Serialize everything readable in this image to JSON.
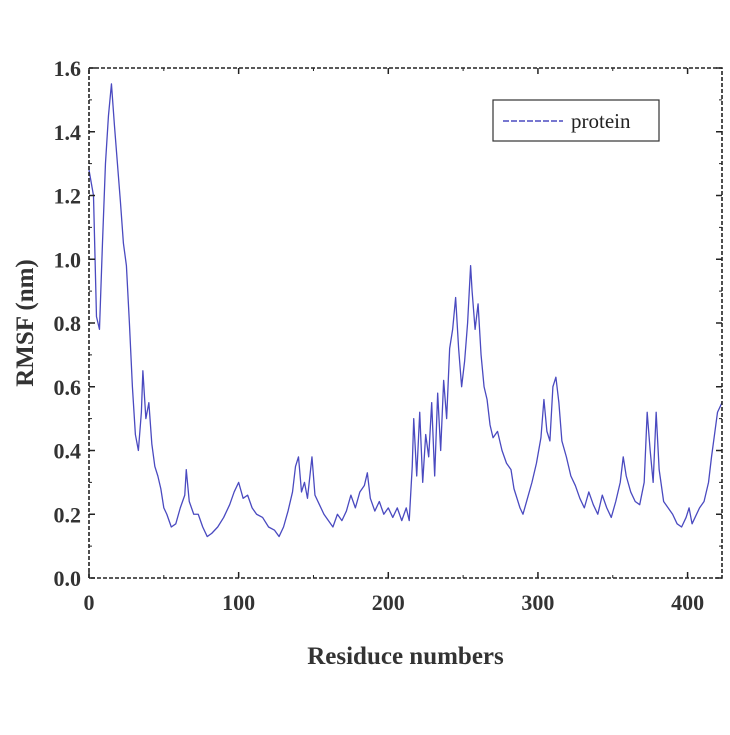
{
  "chart_data": {
    "type": "line",
    "title": "",
    "xlabel": "Residuce numbers",
    "ylabel": "RMSF (nm)",
    "xlim": [
      0,
      423
    ],
    "ylim": [
      0,
      1.6
    ],
    "x_ticks": [
      0,
      100,
      200,
      300,
      400
    ],
    "y_ticks": [
      0.0,
      0.2,
      0.4,
      0.6,
      0.8,
      1.0,
      1.2,
      1.4,
      1.6
    ],
    "x_tick_labels": [
      "0",
      "100",
      "200",
      "300",
      "400"
    ],
    "y_tick_labels": [
      "0.0",
      "0.2",
      "0.4",
      "0.6",
      "0.8",
      "1.0",
      "1.2",
      "1.4",
      "1.6"
    ],
    "legend": {
      "position": "top-right",
      "entries": [
        "protein"
      ]
    },
    "grid": false,
    "series": [
      {
        "name": "protein",
        "color": "#4a4ac0",
        "points": [
          [
            0,
            1.28
          ],
          [
            3,
            1.2
          ],
          [
            5,
            0.82
          ],
          [
            7,
            0.78
          ],
          [
            9,
            1.05
          ],
          [
            11,
            1.3
          ],
          [
            13,
            1.45
          ],
          [
            15,
            1.55
          ],
          [
            17,
            1.42
          ],
          [
            19,
            1.3
          ],
          [
            21,
            1.18
          ],
          [
            23,
            1.05
          ],
          [
            25,
            0.98
          ],
          [
            27,
            0.8
          ],
          [
            29,
            0.6
          ],
          [
            31,
            0.45
          ],
          [
            33,
            0.4
          ],
          [
            35,
            0.52
          ],
          [
            36,
            0.65
          ],
          [
            38,
            0.5
          ],
          [
            40,
            0.55
          ],
          [
            42,
            0.42
          ],
          [
            44,
            0.35
          ],
          [
            46,
            0.32
          ],
          [
            48,
            0.28
          ],
          [
            50,
            0.22
          ],
          [
            52,
            0.2
          ],
          [
            55,
            0.16
          ],
          [
            58,
            0.17
          ],
          [
            61,
            0.22
          ],
          [
            64,
            0.26
          ],
          [
            65,
            0.34
          ],
          [
            67,
            0.24
          ],
          [
            70,
            0.2
          ],
          [
            73,
            0.2
          ],
          [
            76,
            0.16
          ],
          [
            79,
            0.13
          ],
          [
            82,
            0.14
          ],
          [
            86,
            0.16
          ],
          [
            90,
            0.19
          ],
          [
            94,
            0.23
          ],
          [
            97,
            0.27
          ],
          [
            100,
            0.3
          ],
          [
            103,
            0.25
          ],
          [
            106,
            0.26
          ],
          [
            109,
            0.22
          ],
          [
            112,
            0.2
          ],
          [
            116,
            0.19
          ],
          [
            120,
            0.16
          ],
          [
            124,
            0.15
          ],
          [
            127,
            0.13
          ],
          [
            130,
            0.16
          ],
          [
            133,
            0.21
          ],
          [
            136,
            0.27
          ],
          [
            138,
            0.35
          ],
          [
            140,
            0.38
          ],
          [
            142,
            0.27
          ],
          [
            144,
            0.3
          ],
          [
            146,
            0.25
          ],
          [
            149,
            0.38
          ],
          [
            151,
            0.26
          ],
          [
            154,
            0.23
          ],
          [
            157,
            0.2
          ],
          [
            160,
            0.18
          ],
          [
            163,
            0.16
          ],
          [
            166,
            0.2
          ],
          [
            169,
            0.18
          ],
          [
            172,
            0.21
          ],
          [
            175,
            0.26
          ],
          [
            178,
            0.22
          ],
          [
            181,
            0.27
          ],
          [
            184,
            0.29
          ],
          [
            186,
            0.33
          ],
          [
            188,
            0.25
          ],
          [
            191,
            0.21
          ],
          [
            194,
            0.24
          ],
          [
            197,
            0.2
          ],
          [
            200,
            0.22
          ],
          [
            203,
            0.19
          ],
          [
            206,
            0.22
          ],
          [
            209,
            0.18
          ],
          [
            212,
            0.22
          ],
          [
            214,
            0.18
          ],
          [
            216,
            0.35
          ],
          [
            217,
            0.5
          ],
          [
            219,
            0.32
          ],
          [
            221,
            0.52
          ],
          [
            223,
            0.3
          ],
          [
            225,
            0.45
          ],
          [
            227,
            0.38
          ],
          [
            229,
            0.55
          ],
          [
            231,
            0.32
          ],
          [
            233,
            0.58
          ],
          [
            235,
            0.4
          ],
          [
            237,
            0.62
          ],
          [
            239,
            0.5
          ],
          [
            241,
            0.72
          ],
          [
            243,
            0.78
          ],
          [
            245,
            0.88
          ],
          [
            247,
            0.72
          ],
          [
            249,
            0.6
          ],
          [
            251,
            0.68
          ],
          [
            253,
            0.8
          ],
          [
            255,
            0.98
          ],
          [
            256,
            0.9
          ],
          [
            258,
            0.78
          ],
          [
            260,
            0.86
          ],
          [
            262,
            0.7
          ],
          [
            264,
            0.6
          ],
          [
            266,
            0.56
          ],
          [
            268,
            0.48
          ],
          [
            270,
            0.44
          ],
          [
            273,
            0.46
          ],
          [
            276,
            0.4
          ],
          [
            279,
            0.36
          ],
          [
            282,
            0.34
          ],
          [
            284,
            0.28
          ],
          [
            286,
            0.25
          ],
          [
            288,
            0.22
          ],
          [
            290,
            0.2
          ],
          [
            293,
            0.25
          ],
          [
            296,
            0.3
          ],
          [
            299,
            0.36
          ],
          [
            302,
            0.44
          ],
          [
            304,
            0.56
          ],
          [
            306,
            0.46
          ],
          [
            308,
            0.43
          ],
          [
            310,
            0.6
          ],
          [
            312,
            0.63
          ],
          [
            314,
            0.55
          ],
          [
            316,
            0.43
          ],
          [
            319,
            0.38
          ],
          [
            322,
            0.32
          ],
          [
            325,
            0.29
          ],
          [
            328,
            0.25
          ],
          [
            331,
            0.22
          ],
          [
            334,
            0.27
          ],
          [
            337,
            0.23
          ],
          [
            340,
            0.2
          ],
          [
            343,
            0.26
          ],
          [
            346,
            0.22
          ],
          [
            349,
            0.19
          ],
          [
            352,
            0.24
          ],
          [
            355,
            0.3
          ],
          [
            357,
            0.38
          ],
          [
            359,
            0.32
          ],
          [
            362,
            0.27
          ],
          [
            365,
            0.24
          ],
          [
            368,
            0.23
          ],
          [
            371,
            0.3
          ],
          [
            373,
            0.52
          ],
          [
            375,
            0.4
          ],
          [
            377,
            0.3
          ],
          [
            379,
            0.52
          ],
          [
            381,
            0.34
          ],
          [
            384,
            0.24
          ],
          [
            387,
            0.22
          ],
          [
            390,
            0.2
          ],
          [
            393,
            0.17
          ],
          [
            396,
            0.16
          ],
          [
            399,
            0.19
          ],
          [
            401,
            0.22
          ],
          [
            403,
            0.17
          ],
          [
            405,
            0.19
          ],
          [
            408,
            0.22
          ],
          [
            411,
            0.24
          ],
          [
            414,
            0.3
          ],
          [
            416,
            0.38
          ],
          [
            418,
            0.45
          ],
          [
            420,
            0.52
          ],
          [
            423,
            0.55
          ]
        ]
      }
    ]
  }
}
